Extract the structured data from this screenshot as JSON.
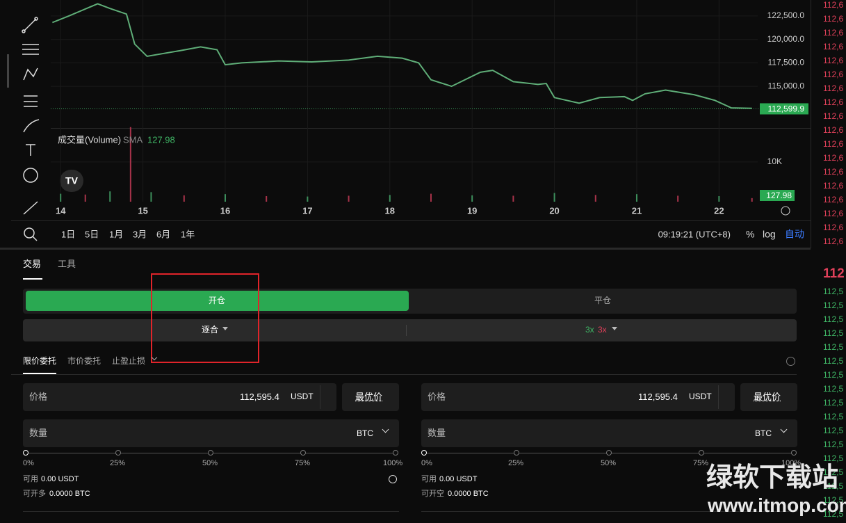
{
  "chart_data": {
    "type": "line",
    "color": "#5fae78",
    "x": [
      13.9,
      14.1,
      14.45,
      14.6,
      14.8,
      14.9,
      15.05,
      15.45,
      15.7,
      15.9,
      16.0,
      16.2,
      16.65,
      17.05,
      17.5,
      17.85,
      18.15,
      18.35,
      18.5,
      18.75,
      19.1,
      19.25,
      19.5,
      19.8,
      19.9,
      20.0,
      20.3,
      20.55,
      20.85,
      20.95,
      21.1,
      21.35,
      21.7,
      21.95,
      22.15,
      22.4
    ],
    "values": [
      121800,
      122500,
      123800,
      123300,
      122700,
      119500,
      118200,
      118800,
      119200,
      118900,
      117300,
      117500,
      117700,
      117600,
      117800,
      118200,
      118000,
      117500,
      115700,
      115000,
      116500,
      116700,
      115500,
      115200,
      115300,
      113800,
      113200,
      113800,
      113900,
      113500,
      114200,
      114600,
      114100,
      113500,
      112700,
      112650
    ],
    "xlim": [
      13.88,
      22.47
    ],
    "xticks": [
      14,
      15,
      16,
      17,
      18,
      19,
      20,
      21,
      22
    ],
    "ylim": [
      110560,
      124200
    ],
    "yticks": [
      {
        "value": 122500,
        "label": "122,500.0"
      },
      {
        "value": 120000,
        "label": "120,000.0"
      },
      {
        "value": 117500,
        "label": "117,500.0"
      },
      {
        "value": 115000,
        "label": "115,000.0"
      }
    ],
    "current_price": {
      "value": 112599.9,
      "label": "112,599.9"
    },
    "volume": {
      "title": "成交量(Volume)",
      "indicator": "SMA",
      "sma": 127.98,
      "color": "#3d8f5c",
      "x": [
        14.0,
        14.3,
        14.6,
        14.85,
        15.1,
        15.5,
        16.0,
        16.5,
        17.0,
        17.5,
        18.0,
        18.5,
        19.0,
        19.5,
        20.0,
        20.5,
        21.0,
        21.5,
        22.0,
        22.4
      ],
      "values": [
        2000,
        1800,
        2600,
        18800,
        2400,
        1600,
        1900,
        1400,
        1300,
        1500,
        1700,
        2000,
        1600,
        1500,
        2200,
        1700,
        1900,
        1500,
        1400,
        900
      ],
      "ylim": [
        0,
        18400
      ],
      "yticks": [
        {
          "value": 10000,
          "label": "10K"
        }
      ]
    },
    "ranges": [
      "1日",
      "5日",
      "1月",
      "3月",
      "6月",
      "1年"
    ],
    "clock": "09:19:21 (UTC+8)",
    "scale_options": [
      "%",
      "log",
      "自动"
    ]
  },
  "trade": {
    "tabs": [
      "交易",
      "工具"
    ],
    "modes": [
      "开仓",
      "平仓"
    ],
    "margin": "逐合",
    "leverage": [
      "3x",
      "3x"
    ],
    "order_types": [
      "限价委托",
      "市价委托",
      "止盈止损"
    ],
    "columns": [
      {
        "price_label": "价格",
        "price": "112,595.4",
        "unit": "USDT",
        "best": "最优价",
        "qty_label": "数量",
        "qty_unit": "BTC",
        "slider": [
          "0%",
          "25%",
          "50%",
          "75%",
          "100%"
        ],
        "avail_label": "可用",
        "avail": "0.00 USDT",
        "max_label": "可开多",
        "max": "0.0000 BTC"
      },
      {
        "price_label": "价格",
        "price": "112,595.4",
        "unit": "USDT",
        "best": "最优价",
        "qty_label": "数量",
        "qty_unit": "BTC",
        "slider": [
          "0%",
          "25%",
          "50%",
          "75%",
          "100%"
        ],
        "avail_label": "可用",
        "avail": "0.00 USDT",
        "max_label": "可开空",
        "max": "0.0000 BTC"
      }
    ]
  },
  "orderbook": {
    "asks": [
      "112,6",
      "112,6",
      "112,6",
      "112,6",
      "112,6",
      "112,6",
      "112,6",
      "112,6",
      "112,6",
      "112,6",
      "112,6",
      "112,6",
      "112,6",
      "112,6",
      "112,6",
      "112,6",
      "112,6",
      "112,6"
    ],
    "mid": "112",
    "bids": [
      "112,5",
      "112,5",
      "112,5",
      "112,5",
      "112,5",
      "112,5",
      "112,5",
      "112,5",
      "112,5",
      "112,5",
      "112,5",
      "112,5",
      "112,5",
      "112,5",
      "112,5",
      "112,5",
      "112,5"
    ]
  },
  "watermark": [
    "绿软下载站",
    "www.itmop.com"
  ]
}
